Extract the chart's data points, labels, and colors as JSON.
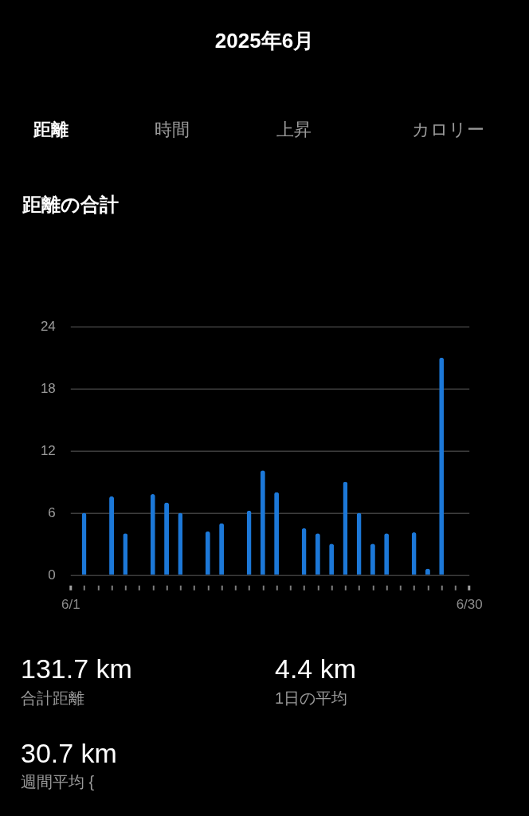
{
  "chart_data": {
    "type": "bar",
    "title": "2025年6月",
    "subtitle": "距離の合計",
    "annotations": [
      "距離",
      "時間",
      "上昇",
      "カロリー",
      "131.7 km",
      "合計距離",
      "4.4 km",
      "1日の平均",
      "30.7 km",
      "週間平均 {"
    ],
    "categories": [
      "6/1",
      null,
      null,
      null,
      null,
      null,
      null,
      null,
      null,
      null,
      null,
      null,
      null,
      null,
      null,
      null,
      null,
      null,
      null,
      null,
      null,
      null,
      null,
      null,
      null,
      null,
      null,
      null,
      null,
      "6/30"
    ],
    "values": [
      null,
      6.0,
      null,
      7.6,
      4.0,
      null,
      7.8,
      7.0,
      6.0,
      null,
      4.2,
      5.0,
      null,
      6.2,
      10.1,
      8.0,
      null,
      4.5,
      4.0,
      3.0,
      9.0,
      6.0,
      3.0,
      4.0,
      null,
      4.1,
      0.6,
      21.0,
      null,
      null
    ],
    "color": "#1c78d8",
    "ylim": [
      0,
      24
    ],
    "yticks": [
      0,
      6,
      12,
      18,
      24
    ],
    "grid": "y"
  }
}
